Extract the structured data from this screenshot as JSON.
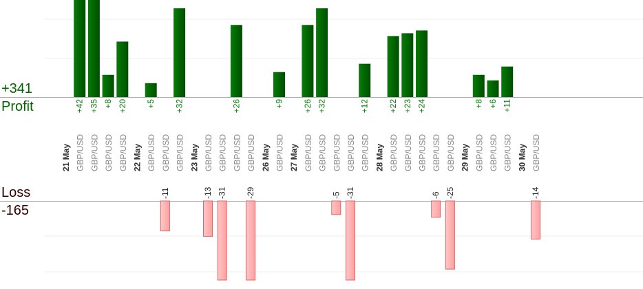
{
  "summary": {
    "profit_total": "+341",
    "profit_label": "Profit",
    "loss_label": "Loss",
    "loss_total": "-165"
  },
  "colors": {
    "profit_bar": "#006600",
    "profit_text": "#007700",
    "loss_fill": "#ffb3b3",
    "loss_stroke": "#e06666",
    "loss_text": "#222222",
    "grid": "#eeeeee",
    "axis": "#aaaaaa",
    "pair_text": "#888888",
    "date_text": "#333333"
  },
  "chart_data": {
    "type": "bar",
    "title": "",
    "profit_ylim": [
      0,
      35
    ],
    "loss_ylim": [
      -29,
      0
    ],
    "columns": [
      {
        "label": "21 May",
        "kind": "date"
      },
      {
        "label": "GBP/USD",
        "kind": "trade",
        "profit": 42
      },
      {
        "label": "GBP/USD",
        "kind": "trade",
        "profit": 35
      },
      {
        "label": "GBP/USD",
        "kind": "trade",
        "profit": 8
      },
      {
        "label": "GBP/USD",
        "kind": "trade",
        "profit": 20
      },
      {
        "label": "22 May",
        "kind": "date"
      },
      {
        "label": "GBP/USD",
        "kind": "trade",
        "profit": 5
      },
      {
        "label": "GBP/USD",
        "kind": "trade",
        "loss": -11
      },
      {
        "label": "GBP/USD",
        "kind": "trade",
        "profit": 32
      },
      {
        "label": "23 May",
        "kind": "date"
      },
      {
        "label": "GBP/USD",
        "kind": "trade",
        "loss": -13
      },
      {
        "label": "GBP/USD",
        "kind": "trade",
        "loss": -31
      },
      {
        "label": "GBP/USD",
        "kind": "trade",
        "profit": 26
      },
      {
        "label": "GBP/USD",
        "kind": "trade",
        "loss": -29
      },
      {
        "label": "26 May",
        "kind": "date"
      },
      {
        "label": "GBP/USD",
        "kind": "trade",
        "profit": 9
      },
      {
        "label": "27 May",
        "kind": "date"
      },
      {
        "label": "GBP/USD",
        "kind": "trade",
        "profit": 26
      },
      {
        "label": "GBP/USD",
        "kind": "trade",
        "profit": 32
      },
      {
        "label": "GBP/USD",
        "kind": "trade",
        "loss": -5
      },
      {
        "label": "GBP/USD",
        "kind": "trade",
        "loss": -31
      },
      {
        "label": "GBP/USD",
        "kind": "trade",
        "profit": 12
      },
      {
        "label": "28 May",
        "kind": "date"
      },
      {
        "label": "GBP/USD",
        "kind": "trade",
        "profit": 22
      },
      {
        "label": "GBP/USD",
        "kind": "trade",
        "profit": 23
      },
      {
        "label": "GBP/USD",
        "kind": "trade",
        "profit": 24
      },
      {
        "label": "GBP/USD",
        "kind": "trade",
        "loss": -6
      },
      {
        "label": "GBP/USD",
        "kind": "trade",
        "loss": -25
      },
      {
        "label": "29 May",
        "kind": "date"
      },
      {
        "label": "GBP/USD",
        "kind": "trade",
        "profit": 8
      },
      {
        "label": "GBP/USD",
        "kind": "trade",
        "profit": 6
      },
      {
        "label": "GBP/USD",
        "kind": "trade",
        "profit": 11
      },
      {
        "label": "30 May",
        "kind": "date"
      },
      {
        "label": "GBP/USD",
        "kind": "trade",
        "loss": -14
      }
    ]
  }
}
